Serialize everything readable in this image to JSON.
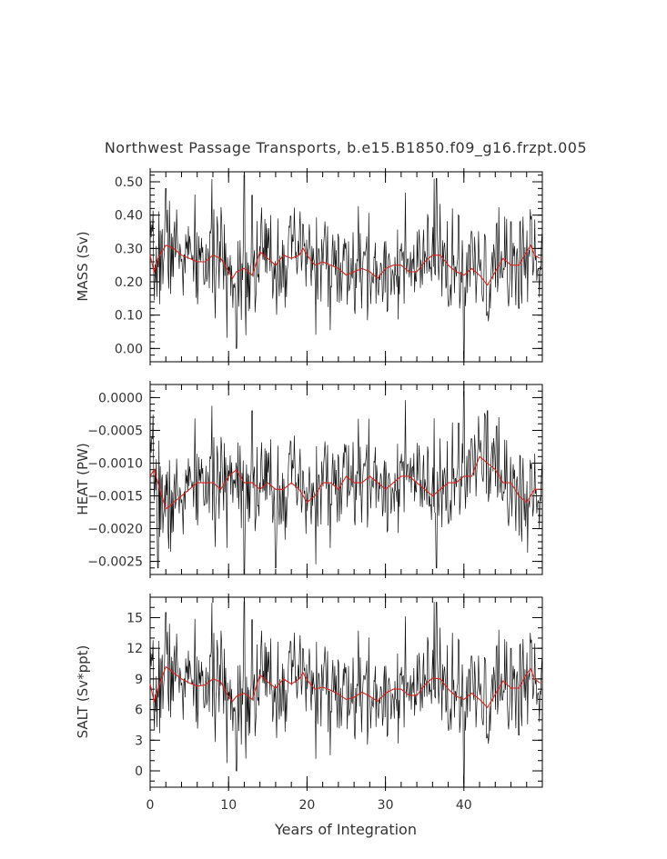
{
  "figure": {
    "title": "Northwest Passage Transports, b.e15.B1850.f09_g16.frzpt.005",
    "xlabel": "Years of Integration"
  },
  "colors": {
    "raw": "#111111",
    "smoothed": "#e0201a",
    "axes": "#000000"
  },
  "chart_data": [
    {
      "type": "line",
      "ylabel": "MASS (Sv)",
      "xlim": [
        0,
        50
      ],
      "ylim": [
        -0.04,
        0.53
      ],
      "xticks": [
        "0",
        "10",
        "20",
        "30",
        "40"
      ],
      "yticks": [
        "0.00",
        "0.10",
        "0.20",
        "0.30",
        "0.40",
        "0.50"
      ],
      "smoothed": {
        "x": [
          0,
          0.5,
          1,
          2,
          3,
          4,
          5,
          6,
          7,
          8,
          9,
          10,
          10.5,
          11,
          12,
          13,
          14,
          15,
          16,
          17,
          18,
          19,
          19.5,
          20,
          21,
          22,
          23,
          24,
          25,
          26,
          27,
          28,
          29,
          30,
          31,
          32,
          33,
          34,
          35,
          36,
          37,
          38,
          39,
          40,
          41,
          42,
          43,
          44,
          45,
          46,
          47,
          48,
          48.5,
          49,
          49.7
        ],
        "y": [
          0.28,
          0.23,
          0.27,
          0.31,
          0.3,
          0.28,
          0.27,
          0.26,
          0.26,
          0.28,
          0.27,
          0.23,
          0.21,
          0.23,
          0.24,
          0.22,
          0.29,
          0.27,
          0.25,
          0.28,
          0.27,
          0.28,
          0.3,
          0.28,
          0.25,
          0.26,
          0.25,
          0.24,
          0.22,
          0.23,
          0.24,
          0.23,
          0.21,
          0.24,
          0.25,
          0.25,
          0.23,
          0.23,
          0.26,
          0.28,
          0.28,
          0.25,
          0.23,
          0.22,
          0.24,
          0.22,
          0.19,
          0.23,
          0.27,
          0.25,
          0.25,
          0.29,
          0.31,
          0.28,
          0.27
        ]
      },
      "raw": {
        "spikes_high": [
          [
            2,
            0.48
          ],
          [
            12,
            0.52
          ],
          [
            13,
            0.46
          ],
          [
            36.5,
            0.51
          ],
          [
            46,
            0.38
          ]
        ],
        "spikes_low": [
          [
            11,
            0.0
          ],
          [
            12.2,
            0.04
          ],
          [
            40,
            -0.03
          ],
          [
            47,
            0.12
          ]
        ]
      }
    },
    {
      "type": "line",
      "ylabel": "HEAT (PW)",
      "xlim": [
        0,
        50
      ],
      "ylim": [
        -0.0027,
        0.0002
      ],
      "xticks": [
        "0",
        "10",
        "20",
        "30",
        "40"
      ],
      "yticks": [
        "0.0000",
        "−0.0005",
        "−0.0010",
        "−0.0015",
        "−0.0020",
        "−0.0025"
      ],
      "smoothed": {
        "x": [
          0,
          0.5,
          1,
          2,
          3,
          4,
          5,
          6,
          7,
          8,
          9,
          10,
          11,
          12,
          13,
          14,
          15,
          16,
          17,
          18,
          19,
          20,
          21,
          22,
          23,
          24,
          25,
          26,
          27,
          28,
          29,
          30,
          31,
          32,
          33,
          34,
          35,
          36,
          37,
          38,
          39,
          40,
          41,
          42,
          43,
          44,
          45,
          46,
          47,
          48,
          49,
          49.7
        ],
        "y": [
          -0.0012,
          -0.0011,
          -0.0013,
          -0.0017,
          -0.0016,
          -0.0015,
          -0.0014,
          -0.0013,
          -0.0013,
          -0.0013,
          -0.0014,
          -0.0012,
          -0.0011,
          -0.0013,
          -0.0013,
          -0.0014,
          -0.0013,
          -0.0014,
          -0.0014,
          -0.0013,
          -0.0014,
          -0.0016,
          -0.0015,
          -0.0013,
          -0.0013,
          -0.0014,
          -0.0012,
          -0.0013,
          -0.0013,
          -0.0012,
          -0.0013,
          -0.0014,
          -0.0013,
          -0.0012,
          -0.0012,
          -0.0013,
          -0.0014,
          -0.0015,
          -0.0014,
          -0.0013,
          -0.0013,
          -0.0012,
          -0.0012,
          -0.0009,
          -0.001,
          -0.0011,
          -0.0013,
          -0.0013,
          -0.0015,
          -0.0016,
          -0.0014,
          -0.0014
        ]
      },
      "raw": {
        "spikes_high": [
          [
            12,
            -0.0001
          ],
          [
            13,
            -0.0002
          ],
          [
            40,
            0.0001
          ],
          [
            43,
            -0.0002
          ]
        ],
        "spikes_low": [
          [
            1,
            -0.0026
          ],
          [
            12,
            -0.0027
          ],
          [
            16,
            -0.0026
          ],
          [
            36.5,
            -0.0026
          ]
        ]
      }
    },
    {
      "type": "line",
      "ylabel": "SALT (Sv*ppt)",
      "xlim": [
        0,
        50
      ],
      "ylim": [
        -1.6,
        17
      ],
      "xticks": [
        "0",
        "10",
        "20",
        "30",
        "40"
      ],
      "yticks": [
        "0",
        "3",
        "6",
        "9",
        "12",
        "15"
      ],
      "smoothed": {
        "x": [
          0,
          0.5,
          1,
          2,
          3,
          4,
          5,
          6,
          7,
          8,
          9,
          10,
          10.5,
          11,
          12,
          13,
          14,
          15,
          16,
          17,
          18,
          19,
          19.5,
          20,
          21,
          22,
          23,
          24,
          25,
          26,
          27,
          28,
          29,
          30,
          31,
          32,
          33,
          34,
          35,
          36,
          37,
          38,
          39,
          40,
          41,
          42,
          43,
          44,
          45,
          46,
          47,
          48,
          48.5,
          49,
          49.7
        ],
        "y": [
          8.5,
          6.8,
          8.0,
          10.2,
          9.6,
          9.0,
          8.6,
          8.3,
          8.4,
          9.0,
          8.7,
          7.2,
          6.8,
          7.3,
          7.6,
          7.0,
          9.4,
          8.7,
          8.1,
          9.0,
          8.5,
          9.0,
          9.6,
          8.9,
          8.0,
          8.2,
          7.9,
          7.5,
          7.0,
          7.2,
          7.7,
          7.3,
          6.8,
          7.6,
          8.0,
          8.0,
          7.4,
          7.4,
          8.4,
          9.1,
          9.0,
          8.0,
          7.3,
          7.0,
          7.6,
          7.0,
          6.2,
          7.5,
          8.8,
          8.1,
          8.1,
          9.5,
          10.0,
          9.0,
          8.6
        ]
      },
      "raw": {
        "spikes_high": [
          [
            2,
            15.5
          ],
          [
            12,
            16.5
          ],
          [
            13,
            14.8
          ],
          [
            36.5,
            16.5
          ],
          [
            46,
            12.0
          ]
        ],
        "spikes_low": [
          [
            11,
            0.0
          ],
          [
            12.2,
            1.2
          ],
          [
            40,
            -1.2
          ],
          [
            47,
            3.5
          ]
        ]
      }
    }
  ]
}
